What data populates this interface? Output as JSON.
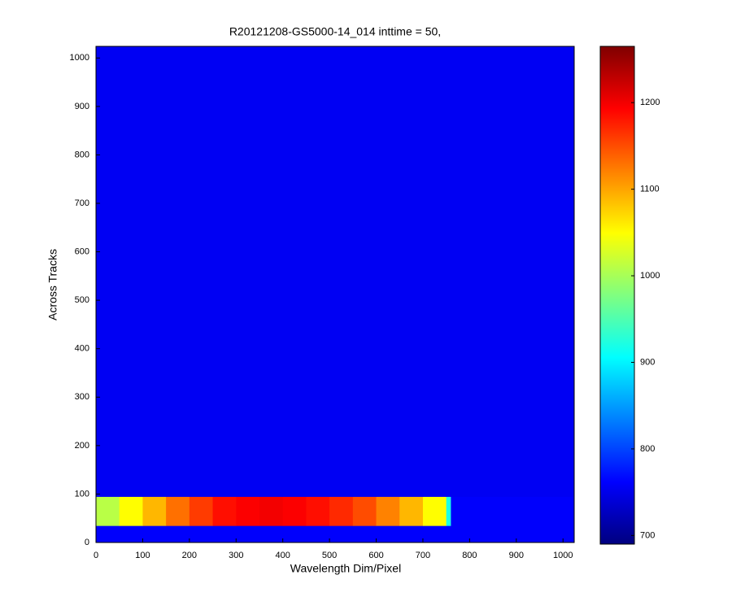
{
  "chart_data": {
    "type": "heatmap",
    "title": "R20121208-GS5000-14_014 inttime = 50,",
    "xlabel": "Wavelength Dim/Pixel",
    "ylabel": "Across Tracks",
    "x_edges": [
      0,
      50,
      100,
      150,
      200,
      250,
      300,
      350,
      400,
      450,
      500,
      550,
      600,
      650,
      700,
      750,
      760,
      1024
    ],
    "y_edges": [
      0,
      35,
      95,
      1024
    ],
    "values": [
      [
        760,
        760,
        760,
        760,
        760,
        760,
        760,
        760,
        760,
        760,
        760,
        760,
        760,
        760,
        760,
        760,
        760
      ],
      [
        1010,
        1050,
        1090,
        1130,
        1160,
        1185,
        1195,
        1200,
        1195,
        1185,
        1170,
        1150,
        1120,
        1090,
        1050,
        920,
        760
      ],
      [
        755,
        755,
        755,
        755,
        755,
        755,
        755,
        755,
        755,
        755,
        755,
        755,
        755,
        755,
        755,
        755,
        755
      ]
    ],
    "colormap": "jet",
    "xlim": [
      0,
      1024
    ],
    "ylim": [
      0,
      1024
    ],
    "xticks": [
      0,
      100,
      200,
      300,
      400,
      500,
      600,
      700,
      800,
      900,
      1000
    ],
    "yticks": [
      0,
      100,
      200,
      300,
      400,
      500,
      600,
      700,
      800,
      900,
      1000
    ],
    "clim": [
      690,
      1265
    ],
    "cticks": [
      700,
      800,
      900,
      1000,
      1100,
      1200
    ]
  }
}
